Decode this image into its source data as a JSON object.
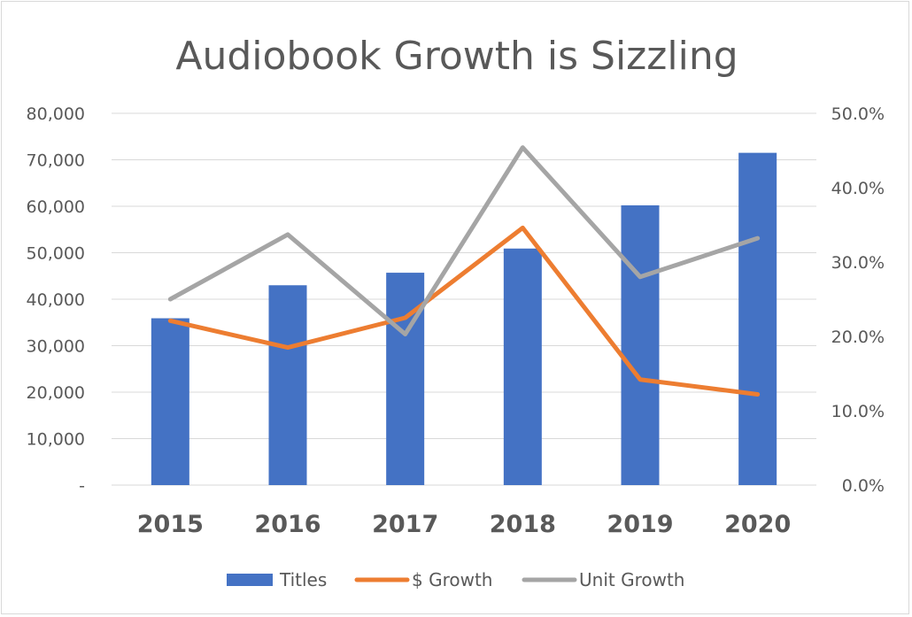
{
  "chart_data": {
    "type": "bar",
    "title": "Audiobook Growth is Sizzling",
    "categories": [
      "2015",
      "2016",
      "2017",
      "2018",
      "2019",
      "2020"
    ],
    "y_left": {
      "ylim": [
        0,
        80000
      ],
      "ticks": [
        0,
        10000,
        20000,
        30000,
        40000,
        50000,
        60000,
        70000,
        80000
      ],
      "tick_labels": [
        "-",
        "10,000",
        "20,000",
        "30,000",
        "40,000",
        "50,000",
        "60,000",
        "70,000",
        "80,000"
      ]
    },
    "y_right": {
      "ylim": [
        0,
        0.5
      ],
      "ticks": [
        0,
        0.1,
        0.2,
        0.3,
        0.4,
        0.5
      ],
      "tick_labels": [
        "0.0%",
        "10.0%",
        "20.0%",
        "30.0%",
        "40.0%",
        "50.0%"
      ]
    },
    "grid": true,
    "legend_position": "bottom",
    "series": [
      {
        "name": "Titles",
        "type": "bar",
        "axis": "left",
        "color": "#4472c4",
        "values": [
          35900,
          43000,
          45700,
          50900,
          60200,
          71500
        ]
      },
      {
        "name": "$ Growth",
        "type": "line",
        "axis": "right",
        "color": "#ed7d31",
        "values": [
          0.221,
          0.185,
          0.225,
          0.346,
          0.142,
          0.122
        ]
      },
      {
        "name": "Unit Growth",
        "type": "line",
        "axis": "right",
        "color": "#a5a5a5",
        "values": [
          0.25,
          0.337,
          0.203,
          0.454,
          0.28,
          0.332
        ]
      }
    ]
  }
}
